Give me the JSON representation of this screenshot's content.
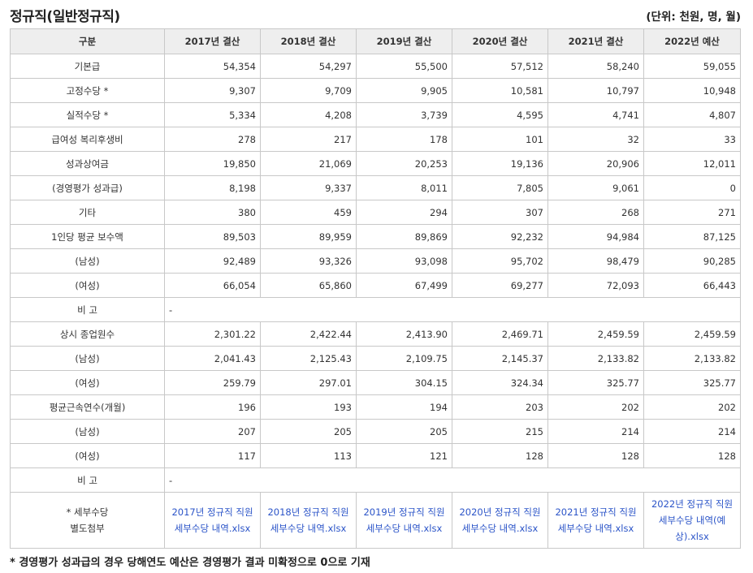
{
  "title": "정규직(일반정규직)",
  "unit": "(단위: 천원, 명, 월)",
  "headers": [
    "구분",
    "2017년 결산",
    "2018년 결산",
    "2019년 결산",
    "2020년 결산",
    "2021년 결산",
    "2022년 예산"
  ],
  "salary_rows": [
    {
      "label": "기본급",
      "values": [
        "54,354",
        "54,297",
        "55,500",
        "57,512",
        "58,240",
        "59,055"
      ]
    },
    {
      "label": "고정수당 *",
      "values": [
        "9,307",
        "9,709",
        "9,905",
        "10,581",
        "10,797",
        "10,948"
      ]
    },
    {
      "label": "실적수당 *",
      "values": [
        "5,334",
        "4,208",
        "3,739",
        "4,595",
        "4,741",
        "4,807"
      ]
    },
    {
      "label": "급여성 복리후생비",
      "values": [
        "278",
        "217",
        "178",
        "101",
        "32",
        "33"
      ]
    },
    {
      "label": "성과상여금",
      "values": [
        "19,850",
        "21,069",
        "20,253",
        "19,136",
        "20,906",
        "12,011"
      ]
    },
    {
      "label": "(경영평가 성과급)",
      "values": [
        "8,198",
        "9,337",
        "8,011",
        "7,805",
        "9,061",
        "0"
      ]
    },
    {
      "label": "기타",
      "values": [
        "380",
        "459",
        "294",
        "307",
        "268",
        "271"
      ]
    },
    {
      "label": "1인당 평균 보수액",
      "values": [
        "89,503",
        "89,959",
        "89,869",
        "92,232",
        "94,984",
        "87,125"
      ]
    },
    {
      "label": "(남성)",
      "values": [
        "92,489",
        "93,326",
        "93,098",
        "95,702",
        "98,479",
        "90,285"
      ]
    },
    {
      "label": "(여성)",
      "values": [
        "66,054",
        "65,860",
        "67,499",
        "69,277",
        "72,093",
        "66,443"
      ]
    }
  ],
  "remark1": {
    "label": "비 고",
    "value": "-"
  },
  "staff_rows": [
    {
      "label": "상시 종업원수",
      "values": [
        "2,301.22",
        "2,422.44",
        "2,413.90",
        "2,469.71",
        "2,459.59",
        "2,459.59"
      ]
    },
    {
      "label": "(남성)",
      "values": [
        "2,041.43",
        "2,125.43",
        "2,109.75",
        "2,145.37",
        "2,133.82",
        "2,133.82"
      ]
    },
    {
      "label": "(여성)",
      "values": [
        "259.79",
        "297.01",
        "304.15",
        "324.34",
        "325.77",
        "325.77"
      ]
    },
    {
      "label": "평균근속연수(개월)",
      "values": [
        "196",
        "193",
        "194",
        "203",
        "202",
        "202"
      ]
    },
    {
      "label": "(남성)",
      "values": [
        "207",
        "205",
        "205",
        "215",
        "214",
        "214"
      ]
    },
    {
      "label": "(여성)",
      "values": [
        "117",
        "113",
        "121",
        "128",
        "128",
        "128"
      ]
    }
  ],
  "remark2": {
    "label": "비 고",
    "value": "-"
  },
  "attachment": {
    "label_line1": "* 세부수당",
    "label_line2": "별도첨부",
    "links": [
      "2017년 정규직 직원 세부수당 내역.xlsx",
      "2018년 정규직 직원 세부수당 내역.xlsx",
      "2019년 정규직 직원 세부수당 내역.xlsx",
      "2020년 정규직 직원 세부수당 내역.xlsx",
      "2021년 정규직 직원 세부수당 내역.xlsx",
      "2022년 정규직 직원 세부수당 내역(예상).xlsx"
    ]
  },
  "footnote": "* 경영평가 성과급의 경우 당해연도 예산은 경영평가 결과 미확정으로 0으로 기재",
  "colors": {
    "link": "#2b54c8",
    "header_bg": "#eeeeee",
    "border": "#c8c8c8"
  }
}
